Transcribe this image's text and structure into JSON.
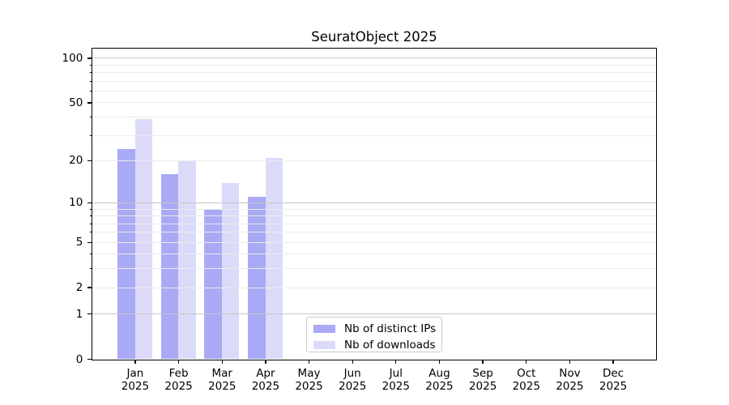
{
  "chart_data": {
    "type": "bar",
    "title": "SeuratObject 2025",
    "categories": [
      "Jan",
      "Feb",
      "Mar",
      "Apr",
      "May",
      "Jun",
      "Jul",
      "Aug",
      "Sep",
      "Oct",
      "Nov",
      "Dec"
    ],
    "category_year": "2025",
    "series": [
      {
        "name": "Nb of distinct IPs",
        "color": "#a9a9f5",
        "values": [
          24,
          16,
          9,
          11,
          0,
          0,
          0,
          0,
          0,
          0,
          0,
          0
        ]
      },
      {
        "name": "Nb of downloads",
        "color": "#dbdbf9",
        "values": [
          39,
          20,
          14,
          21,
          0,
          0,
          0,
          0,
          0,
          0,
          0,
          0
        ]
      }
    ],
    "y_axis": {
      "scale": "log1p",
      "tick_labels": [
        0,
        1,
        2,
        5,
        10,
        20,
        50,
        100
      ],
      "major_gridlines": [
        1,
        10,
        100
      ],
      "minor_gridlines": [
        2,
        3,
        4,
        5,
        6,
        7,
        8,
        9,
        20,
        30,
        40,
        50,
        60,
        70,
        80,
        90
      ],
      "ylim": [
        0,
        117
      ]
    },
    "xlabel": "",
    "ylabel": "",
    "grid": true,
    "grid_over_bars": true,
    "legend": {
      "position": "lower center-left",
      "entries": [
        "Nb of distinct IPs",
        "Nb of downloads"
      ]
    },
    "colors": {
      "background": "#ffffff",
      "spine": "#000000",
      "text": "#000000",
      "grid_major": "#c6c6c6",
      "grid_minor": "#ebebeb"
    }
  }
}
